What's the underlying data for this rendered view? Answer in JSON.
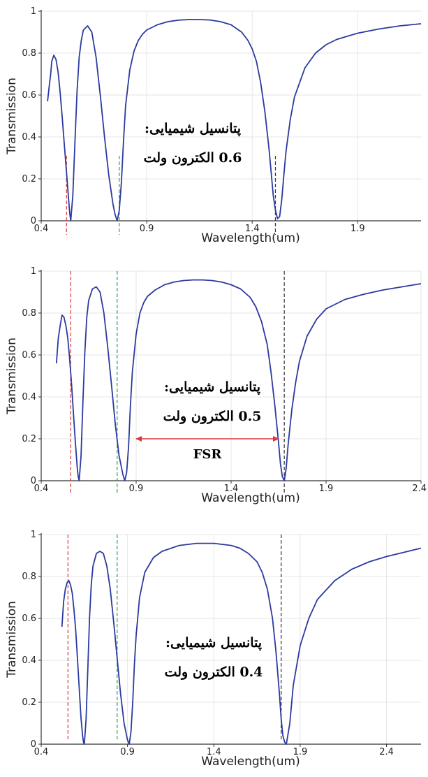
{
  "chart_data": [
    {
      "type": "line",
      "title": "",
      "xlabel": "Wavelength(um)",
      "ylabel": "Transmission",
      "xlim": [
        0.4,
        2.2
      ],
      "ylim": [
        0,
        1
      ],
      "xticks": [
        "0.4",
        "0.9",
        "1.4",
        "1.9"
      ],
      "yticks": [
        "0",
        "0.2",
        "0.4",
        "0.6",
        "0.8",
        "1"
      ],
      "grid": true,
      "line_color": "#2b3a9e",
      "annotation": [
        "پتانسیل شیمیایی:",
        "0.6 الکترون ولت"
      ],
      "series": [
        {
          "x": [
            0.43,
            0.44,
            0.445,
            0.45,
            0.46,
            0.47,
            0.48,
            0.49,
            0.5,
            0.51,
            0.52,
            0.53,
            0.535,
            0.54,
            0.55,
            0.56,
            0.57,
            0.58,
            0.59,
            0.6,
            0.62,
            0.64,
            0.66,
            0.68,
            0.7,
            0.72,
            0.74,
            0.75,
            0.76,
            0.77,
            0.78,
            0.79,
            0.8,
            0.82,
            0.84,
            0.86,
            0.88,
            0.9,
            0.95,
            1.0,
            1.05,
            1.1,
            1.15,
            1.2,
            1.25,
            1.3,
            1.35,
            1.38,
            1.4,
            1.42,
            1.44,
            1.46,
            1.48,
            1.5,
            1.51,
            1.52,
            1.53,
            1.54,
            1.55,
            1.56,
            1.58,
            1.6,
            1.65,
            1.7,
            1.75,
            1.8,
            1.9,
            2.0,
            2.1,
            2.2
          ],
          "y": [
            0.57,
            0.66,
            0.7,
            0.76,
            0.79,
            0.77,
            0.71,
            0.61,
            0.49,
            0.36,
            0.23,
            0.1,
            0.04,
            0.0,
            0.12,
            0.38,
            0.62,
            0.78,
            0.86,
            0.91,
            0.93,
            0.9,
            0.78,
            0.6,
            0.4,
            0.22,
            0.08,
            0.03,
            0.0,
            0.05,
            0.18,
            0.38,
            0.55,
            0.72,
            0.81,
            0.86,
            0.89,
            0.91,
            0.935,
            0.95,
            0.957,
            0.96,
            0.96,
            0.958,
            0.95,
            0.935,
            0.9,
            0.86,
            0.82,
            0.76,
            0.66,
            0.52,
            0.34,
            0.12,
            0.05,
            0.01,
            0.02,
            0.1,
            0.22,
            0.33,
            0.48,
            0.59,
            0.73,
            0.8,
            0.84,
            0.865,
            0.895,
            0.915,
            0.93,
            0.94
          ]
        }
      ],
      "markers": [
        {
          "x": 0.52,
          "y_top": 0.31,
          "color": "#d9393e"
        },
        {
          "x": 0.77,
          "y_top": 0.31,
          "color": "#2e9c5e"
        },
        {
          "x": 1.51,
          "y_top": 0.31,
          "color": "#333333"
        }
      ]
    },
    {
      "type": "line",
      "title": "",
      "xlabel": "Wavelength(um)",
      "ylabel": "Transmission",
      "xlim": [
        0.4,
        2.4
      ],
      "ylim": [
        0,
        1
      ],
      "xticks": [
        "0.4",
        "0.9",
        "1.4",
        "1.9",
        "2.4"
      ],
      "yticks": [
        "0",
        "0.2",
        "0.4",
        "0.6",
        "0.8",
        "1"
      ],
      "grid": true,
      "line_color": "#2b3a9e",
      "annotation": [
        "پتانسیل شیمیایی:",
        "0.5 الکترون ولت"
      ],
      "fsr": {
        "label": "FSR",
        "x_start": 0.9,
        "x_end": 1.65,
        "y": 0.2,
        "color": "#d9393e"
      },
      "series": [
        {
          "x": [
            0.48,
            0.49,
            0.5,
            0.51,
            0.52,
            0.53,
            0.54,
            0.55,
            0.56,
            0.57,
            0.58,
            0.59,
            0.595,
            0.6,
            0.61,
            0.62,
            0.63,
            0.64,
            0.65,
            0.67,
            0.69,
            0.71,
            0.73,
            0.75,
            0.77,
            0.79,
            0.81,
            0.83,
            0.84,
            0.85,
            0.86,
            0.87,
            0.88,
            0.9,
            0.92,
            0.94,
            0.96,
            1.0,
            1.05,
            1.1,
            1.15,
            1.2,
            1.25,
            1.3,
            1.35,
            1.4,
            1.45,
            1.5,
            1.53,
            1.56,
            1.59,
            1.61,
            1.63,
            1.65,
            1.66,
            1.67,
            1.68,
            1.69,
            1.7,
            1.72,
            1.74,
            1.76,
            1.8,
            1.85,
            1.9,
            2.0,
            2.1,
            2.2,
            2.3,
            2.4
          ],
          "y": [
            0.56,
            0.68,
            0.74,
            0.79,
            0.78,
            0.74,
            0.68,
            0.58,
            0.46,
            0.32,
            0.18,
            0.06,
            0.02,
            0.0,
            0.12,
            0.38,
            0.62,
            0.78,
            0.86,
            0.915,
            0.925,
            0.9,
            0.8,
            0.64,
            0.46,
            0.27,
            0.12,
            0.03,
            0.0,
            0.04,
            0.16,
            0.36,
            0.52,
            0.7,
            0.8,
            0.85,
            0.88,
            0.91,
            0.935,
            0.948,
            0.955,
            0.958,
            0.958,
            0.955,
            0.948,
            0.935,
            0.915,
            0.875,
            0.83,
            0.76,
            0.65,
            0.52,
            0.36,
            0.18,
            0.08,
            0.02,
            0.0,
            0.06,
            0.17,
            0.34,
            0.47,
            0.57,
            0.69,
            0.77,
            0.82,
            0.865,
            0.89,
            0.91,
            0.925,
            0.94
          ]
        }
      ],
      "markers": [
        {
          "x": 0.555,
          "y_top": 1.0,
          "color": "#d9393e"
        },
        {
          "x": 0.8,
          "y_top": 1.0,
          "color": "#2e9c5e"
        },
        {
          "x": 1.68,
          "y_top": 1.0,
          "color": "#333333"
        }
      ]
    },
    {
      "type": "line",
      "title": "",
      "xlabel": "Wavelength(um)",
      "ylabel": "Transmission",
      "xlim": [
        0.4,
        2.6
      ],
      "ylim": [
        0,
        1
      ],
      "xticks": [
        "0.4",
        "0.9",
        "1.4",
        "1.9",
        "2.4"
      ],
      "yticks": [
        "0",
        "0.2",
        "0.4",
        "0.6",
        "0.8",
        "1"
      ],
      "grid": true,
      "line_color": "#2b3a9e",
      "annotation": [
        "پتانسیل شیمیایی:",
        "0.4 الکترون ولت"
      ],
      "series": [
        {
          "x": [
            0.52,
            0.53,
            0.54,
            0.55,
            0.56,
            0.57,
            0.58,
            0.59,
            0.6,
            0.61,
            0.62,
            0.63,
            0.64,
            0.645,
            0.65,
            0.66,
            0.67,
            0.68,
            0.69,
            0.7,
            0.72,
            0.74,
            0.76,
            0.78,
            0.8,
            0.82,
            0.84,
            0.86,
            0.88,
            0.9,
            0.91,
            0.92,
            0.93,
            0.94,
            0.95,
            0.97,
            1.0,
            1.05,
            1.1,
            1.2,
            1.3,
            1.4,
            1.5,
            1.55,
            1.6,
            1.65,
            1.68,
            1.71,
            1.74,
            1.76,
            1.78,
            1.79,
            1.8,
            1.81,
            1.82,
            1.84,
            1.86,
            1.9,
            1.95,
            2.0,
            2.1,
            2.2,
            2.3,
            2.4,
            2.5,
            2.6
          ],
          "y": [
            0.56,
            0.68,
            0.74,
            0.77,
            0.78,
            0.76,
            0.72,
            0.64,
            0.54,
            0.41,
            0.27,
            0.13,
            0.04,
            0.01,
            0.0,
            0.12,
            0.36,
            0.6,
            0.76,
            0.85,
            0.91,
            0.92,
            0.91,
            0.85,
            0.74,
            0.58,
            0.41,
            0.24,
            0.1,
            0.02,
            0.0,
            0.06,
            0.2,
            0.38,
            0.52,
            0.7,
            0.82,
            0.89,
            0.92,
            0.948,
            0.958,
            0.958,
            0.948,
            0.935,
            0.91,
            0.87,
            0.82,
            0.74,
            0.6,
            0.44,
            0.24,
            0.12,
            0.04,
            0.01,
            0.0,
            0.1,
            0.28,
            0.47,
            0.6,
            0.69,
            0.78,
            0.835,
            0.87,
            0.895,
            0.915,
            0.935
          ]
        }
      ],
      "markers": [
        {
          "x": 0.555,
          "y_top": 1.0,
          "color": "#d9393e"
        },
        {
          "x": 0.84,
          "y_top": 1.0,
          "color": "#2e9c5e"
        },
        {
          "x": 1.79,
          "y_top": 1.0,
          "color": "#333333"
        }
      ]
    }
  ]
}
